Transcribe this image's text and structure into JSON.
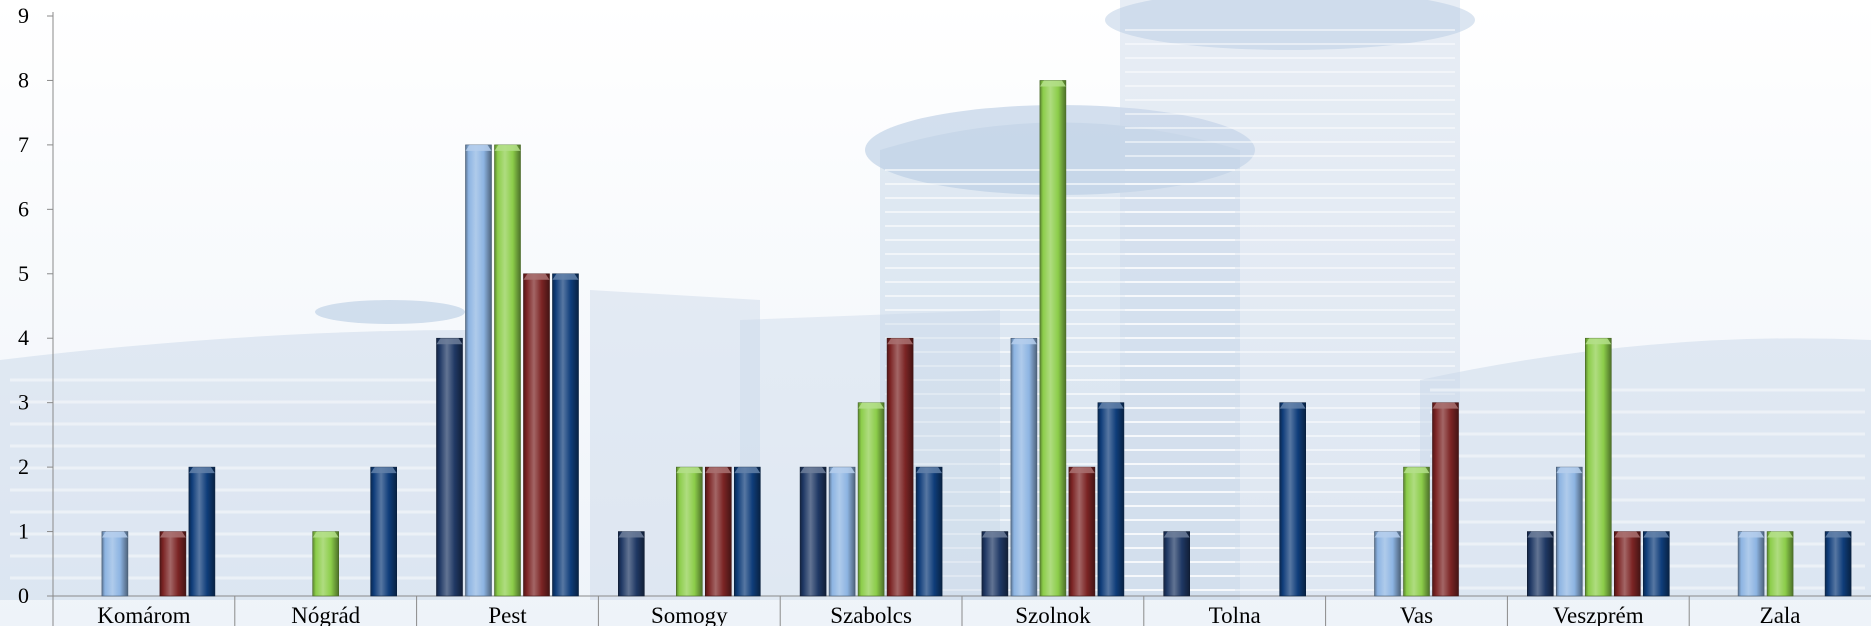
{
  "chart_data": {
    "type": "bar",
    "title": "",
    "xlabel": "",
    "ylabel": "",
    "ylim": [
      0,
      9
    ],
    "yticks": [
      0,
      1,
      2,
      3,
      4,
      5,
      6,
      7,
      8,
      9
    ],
    "grid": false,
    "legend": "none",
    "categories": [
      "Komárom",
      "Nógrád",
      "Pest",
      "Somogy",
      "Szabolcs",
      "Szolnok",
      "Tolna",
      "Vas",
      "Veszprém",
      "Zala"
    ],
    "series": [
      {
        "color": "#1f3864",
        "values": [
          0,
          0,
          4,
          1,
          2,
          1,
          1,
          0,
          1,
          0
        ]
      },
      {
        "color": "#8db4e2",
        "values": [
          1,
          0,
          7,
          0,
          2,
          4,
          0,
          1,
          2,
          1
        ]
      },
      {
        "color": "#8ccd4a",
        "values": [
          0,
          1,
          7,
          2,
          3,
          8,
          0,
          2,
          4,
          1
        ]
      },
      {
        "color": "#7b2424",
        "values": [
          1,
          0,
          5,
          2,
          4,
          2,
          0,
          3,
          1,
          0
        ]
      },
      {
        "color": "#0f3d7a",
        "values": [
          2,
          2,
          5,
          2,
          2,
          3,
          3,
          0,
          1,
          1
        ]
      }
    ],
    "background": "faded light-blue photo of a modern office building"
  }
}
